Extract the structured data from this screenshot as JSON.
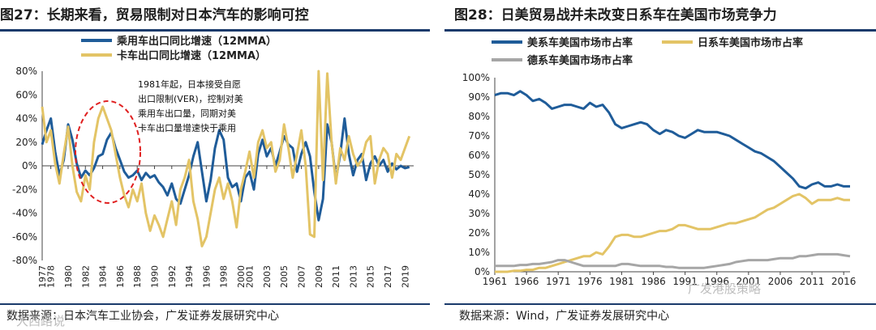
{
  "left": {
    "title": "图27：长期来看，贸易限制对日本汽车的影响可控",
    "source": "数据来源：日本汽车工业协会，广发证券发展研究中心",
    "annotation": [
      "1981年起，日本接受自愿",
      "出口限制(VER)，控制对美",
      "乘用车出口量，同期对美",
      "卡车出口量增速快于乘用"
    ],
    "chart_data": {
      "type": "line",
      "title": "",
      "ylim": [
        -80,
        80
      ],
      "yticks": [
        -80,
        -60,
        -40,
        -20,
        0,
        20,
        40,
        60,
        80
      ],
      "ytick_labels": [
        "-80%",
        "-60%",
        "-40%",
        "-20%",
        "0%",
        "20%",
        "40%",
        "60%",
        "80%"
      ],
      "xlim": [
        1977,
        2020
      ],
      "xticks": [
        1977,
        1978,
        1980,
        1982,
        1984,
        1986,
        1988,
        1990,
        1992,
        1994,
        1996,
        1998,
        2000,
        2001,
        2003,
        2005,
        2007,
        2009,
        2011,
        2013,
        2015,
        2017,
        2019
      ],
      "series": [
        {
          "name": "乘用车出口同比增速（12MMA）",
          "color": "#1f5c99",
          "x": [
            1977,
            1977.5,
            1978,
            1978.5,
            1979,
            1979.5,
            1980,
            1980.5,
            1981,
            1981.5,
            1982,
            1982.5,
            1983,
            1983.5,
            1984,
            1984.5,
            1985,
            1985.5,
            1986,
            1986.5,
            1987,
            1987.5,
            1988,
            1988.5,
            1989,
            1989.5,
            1990,
            1990.5,
            1991,
            1991.5,
            1992,
            1992.5,
            1993,
            1993.5,
            1994,
            1994.5,
            1995,
            1995.5,
            1996,
            1996.5,
            1997,
            1997.5,
            1998,
            1998.5,
            1999,
            1999.5,
            2000,
            2000.5,
            2001,
            2001.5,
            2002,
            2002.5,
            2003,
            2003.5,
            2004,
            2004.5,
            2005,
            2005.5,
            2006,
            2006.5,
            2007,
            2007.5,
            2008,
            2008.5,
            2009,
            2009.5,
            2010,
            2010.5,
            2011,
            2011.5,
            2012,
            2012.5,
            2013,
            2013.5,
            2014,
            2014.5,
            2015,
            2015.5,
            2016,
            2016.5,
            2017,
            2017.5,
            2018,
            2018.5,
            2019,
            2019.5
          ],
          "values": [
            18,
            30,
            40,
            12,
            -8,
            5,
            35,
            22,
            2,
            -10,
            -4,
            -8,
            -2,
            8,
            10,
            22,
            28,
            15,
            5,
            -5,
            -10,
            -8,
            -4,
            -12,
            -6,
            -10,
            -8,
            -14,
            -18,
            -25,
            -15,
            -28,
            -32,
            -20,
            -8,
            8,
            20,
            -5,
            -30,
            -12,
            15,
            30,
            22,
            -10,
            -18,
            -15,
            -30,
            -10,
            -5,
            -20,
            10,
            22,
            8,
            15,
            0,
            12,
            25,
            18,
            15,
            -5,
            10,
            20,
            8,
            -22,
            -46,
            -28,
            35,
            20,
            -12,
            10,
            40,
            10,
            -8,
            5,
            10,
            -12,
            2,
            8,
            0,
            5,
            -5,
            2,
            -3,
            0,
            -2,
            -1
          ]
        },
        {
          "name": "卡车出口同比增速（12MMA）",
          "color": "#e3c466",
          "x": [
            1977,
            1977.5,
            1978,
            1978.5,
            1979,
            1979.5,
            1980,
            1980.5,
            1981,
            1981.5,
            1982,
            1982.5,
            1983,
            1983.5,
            1984,
            1984.5,
            1985,
            1985.5,
            1986,
            1986.5,
            1987,
            1987.5,
            1988,
            1988.5,
            1989,
            1989.5,
            1990,
            1990.5,
            1991,
            1991.5,
            1992,
            1992.5,
            1993,
            1993.5,
            1994,
            1994.5,
            1995,
            1995.5,
            1996,
            1996.5,
            1997,
            1997.5,
            1998,
            1998.5,
            1999,
            1999.5,
            2000,
            2000.5,
            2001,
            2001.5,
            2002,
            2002.5,
            2003,
            2003.5,
            2004,
            2004.5,
            2005,
            2005.5,
            2006,
            2006.5,
            2007,
            2007.5,
            2008,
            2008.5,
            2009,
            2009.5,
            2010,
            2010.5,
            2011,
            2011.5,
            2012,
            2012.5,
            2013,
            2013.5,
            2014,
            2014.5,
            2015,
            2015.5,
            2016,
            2016.5,
            2017,
            2017.5,
            2018,
            2018.5,
            2019,
            2019.5
          ],
          "values": [
            50,
            20,
            30,
            2,
            -15,
            10,
            33,
            0,
            -22,
            -30,
            -8,
            -20,
            20,
            40,
            50,
            40,
            30,
            10,
            -10,
            -25,
            -35,
            -20,
            -30,
            -15,
            -40,
            -55,
            -42,
            -50,
            -60,
            -45,
            -30,
            -50,
            -20,
            -10,
            5,
            -30,
            -45,
            -68,
            -60,
            -40,
            -20,
            -10,
            -28,
            -15,
            -30,
            -52,
            -20,
            -5,
            12,
            -10,
            20,
            30,
            15,
            20,
            -5,
            5,
            35,
            15,
            -10,
            10,
            30,
            0,
            -58,
            -60,
            80,
            -12,
            78,
            20,
            -15,
            15,
            5,
            25,
            10,
            0,
            5,
            20,
            25,
            -15,
            5,
            15,
            10,
            -10,
            10,
            5,
            15,
            25
          ]
        }
      ]
    }
  },
  "right": {
    "title": "图28：日美贸易战并未改变日系车在美国市场竞争力",
    "source": "数据来源：Wind，广发证券发展研究中心",
    "chart_data": {
      "type": "line",
      "title": "",
      "ylim": [
        0,
        100
      ],
      "yticks": [
        0,
        10,
        20,
        30,
        40,
        50,
        60,
        70,
        80,
        90,
        100
      ],
      "ytick_labels": [
        "0%",
        "10%",
        "20%",
        "30%",
        "40%",
        "50%",
        "60%",
        "70%",
        "80%",
        "90%",
        "100%"
      ],
      "xlim": [
        1961,
        2017
      ],
      "xticks": [
        1961,
        1966,
        1971,
        1976,
        1981,
        1986,
        1991,
        1996,
        2001,
        2006,
        2011,
        2016
      ],
      "series": [
        {
          "name": "美系车美国市场市占率",
          "color": "#1f5c99",
          "x": [
            1961,
            1962,
            1963,
            1964,
            1965,
            1966,
            1967,
            1968,
            1969,
            1970,
            1971,
            1972,
            1973,
            1974,
            1975,
            1976,
            1977,
            1978,
            1979,
            1980,
            1981,
            1982,
            1983,
            1984,
            1985,
            1986,
            1987,
            1988,
            1989,
            1990,
            1991,
            1992,
            1993,
            1994,
            1995,
            1996,
            1997,
            1998,
            1999,
            2000,
            2001,
            2002,
            2003,
            2004,
            2005,
            2006,
            2007,
            2008,
            2009,
            2010,
            2011,
            2012,
            2013,
            2014,
            2015,
            2016,
            2017
          ],
          "values": [
            91,
            92,
            92,
            91,
            93,
            91,
            88,
            89,
            87,
            84,
            85,
            86,
            86,
            85,
            84,
            87,
            85,
            86,
            82,
            76,
            74,
            75,
            76,
            77,
            76,
            73,
            71,
            73,
            72,
            70,
            69,
            71,
            73,
            72,
            72,
            72,
            71,
            70,
            68,
            66,
            64,
            62,
            61,
            59,
            57,
            54,
            51,
            48,
            44,
            43,
            45,
            46,
            44,
            44,
            45,
            44,
            44
          ]
        },
        {
          "name": "日系车美国市场市占率",
          "color": "#e3c466",
          "x": [
            1961,
            1962,
            1963,
            1964,
            1965,
            1966,
            1967,
            1968,
            1969,
            1970,
            1971,
            1972,
            1973,
            1974,
            1975,
            1976,
            1977,
            1978,
            1979,
            1980,
            1981,
            1982,
            1983,
            1984,
            1985,
            1986,
            1987,
            1988,
            1989,
            1990,
            1991,
            1992,
            1993,
            1994,
            1995,
            1996,
            1997,
            1998,
            1999,
            2000,
            2001,
            2002,
            2003,
            2004,
            2005,
            2006,
            2007,
            2008,
            2009,
            2010,
            2011,
            2012,
            2013,
            2014,
            2015,
            2016,
            2017
          ],
          "values": [
            0,
            0,
            0,
            0.5,
            0.5,
            1,
            1,
            2,
            2,
            3,
            4,
            5,
            6,
            7,
            8,
            8,
            10,
            9,
            13,
            18,
            19,
            19,
            18,
            18,
            19,
            20,
            21,
            21,
            22,
            24,
            24,
            23,
            22,
            22,
            22,
            23,
            24,
            25,
            25,
            26,
            27,
            28,
            30,
            32,
            33,
            35,
            37,
            39,
            40,
            38,
            35,
            37,
            37,
            37,
            38,
            37,
            37
          ]
        },
        {
          "name": "德系车美国市场市占率",
          "color": "#a6a6a6",
          "x": [
            1961,
            1962,
            1963,
            1964,
            1965,
            1966,
            1967,
            1968,
            1969,
            1970,
            1971,
            1972,
            1973,
            1974,
            1975,
            1976,
            1977,
            1978,
            1979,
            1980,
            1981,
            1982,
            1983,
            1984,
            1985,
            1986,
            1987,
            1988,
            1989,
            1990,
            1991,
            1992,
            1993,
            1994,
            1995,
            1996,
            1997,
            1998,
            1999,
            2000,
            2001,
            2002,
            2003,
            2004,
            2005,
            2006,
            2007,
            2008,
            2009,
            2010,
            2011,
            2012,
            2013,
            2014,
            2015,
            2016,
            2017
          ],
          "values": [
            3,
            3,
            3,
            3,
            3.5,
            3.5,
            4,
            4,
            4.5,
            5,
            6,
            6,
            5,
            4,
            3,
            3,
            3,
            3,
            3,
            3,
            4,
            4,
            3.5,
            3,
            3,
            3,
            3,
            2.5,
            2.5,
            2,
            2,
            2,
            2,
            2,
            2.5,
            3,
            3.5,
            4,
            5,
            5.5,
            6,
            6,
            6,
            6,
            6.5,
            7,
            7,
            7,
            8,
            8,
            8.5,
            9,
            9,
            9,
            9,
            8.5,
            8
          ]
        }
      ]
    }
  },
  "watermarks": [
    "广发港股策略",
    "大西路说"
  ]
}
